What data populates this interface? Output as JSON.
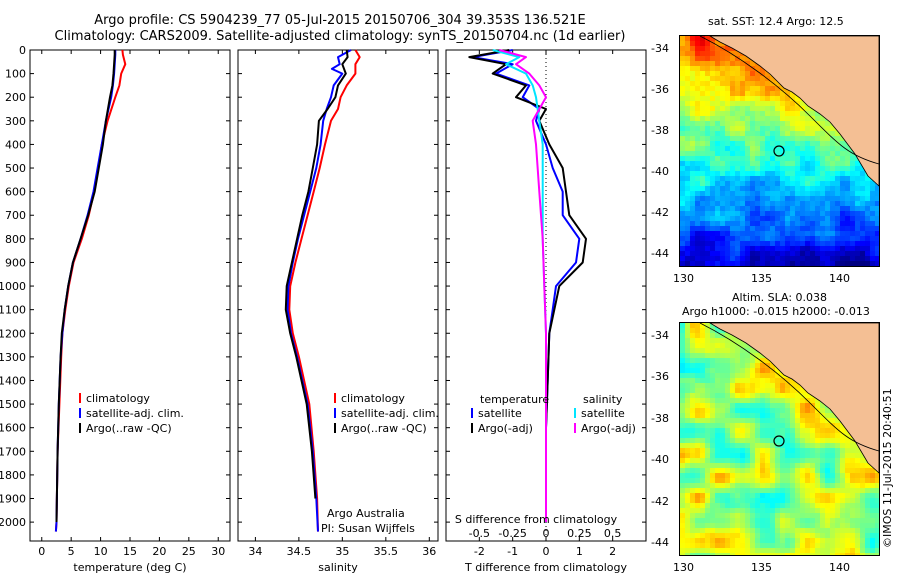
{
  "title": {
    "line1": "Argo profile: CS 5904239_77 05-Jul-2015 20150706_304 39.353S 136.521E",
    "line2": "Climatology: CARS2009. Satellite-adjusted climatology: synTS_20150704.nc (1d earlier)"
  },
  "colors": {
    "climatology": "#ff0000",
    "satellite": "#0000ff",
    "argo": "#000000",
    "satellite_s": "#00e5ff",
    "argo_s": "#ff00ff",
    "land": "#f4bf94"
  },
  "chart_data": [
    {
      "type": "line",
      "name": "temperature",
      "xlabel": "temperature (deg C)",
      "ylabel": "",
      "xlim": [
        -2,
        32
      ],
      "ylim": [
        2080,
        0
      ],
      "xticks": [
        0,
        5,
        10,
        15,
        20,
        25,
        30
      ],
      "yticks": [
        0,
        100,
        200,
        300,
        400,
        500,
        600,
        700,
        800,
        900,
        1000,
        1100,
        1200,
        1300,
        1400,
        1500,
        1600,
        1700,
        1800,
        1900,
        2000
      ],
      "legend": {
        "placement": "lower-middle",
        "entries": [
          "climatology",
          "satellite-adj. clim.",
          "Argo(..raw -QC)"
        ]
      },
      "series": [
        {
          "name": "climatology",
          "color": "#ff0000",
          "depth": [
            0,
            20,
            60,
            100,
            150,
            200,
            300,
            400,
            500,
            600,
            700,
            800,
            900,
            1000,
            1100,
            1200,
            1300,
            1500,
            1700,
            2000,
            2040
          ],
          "values": [
            13.7,
            13.8,
            14.2,
            13.5,
            13.2,
            12.5,
            11.2,
            10.2,
            9.6,
            8.9,
            8.0,
            6.8,
            5.4,
            4.6,
            4.0,
            3.5,
            3.3,
            3.0,
            2.7,
            2.5,
            2.4
          ]
        },
        {
          "name": "satellite-adj. clim.",
          "color": "#0000ff",
          "depth": [
            0,
            20,
            60,
            100,
            150,
            200,
            300,
            400,
            500,
            600,
            700,
            800,
            900,
            1000,
            1100,
            1200,
            1300,
            1500,
            1700,
            2000,
            2040
          ],
          "values": [
            12.5,
            12.5,
            12.4,
            12.3,
            12.1,
            11.8,
            10.9,
            10.2,
            9.5,
            8.8,
            7.8,
            6.6,
            5.3,
            4.5,
            3.9,
            3.5,
            3.2,
            2.9,
            2.7,
            2.5,
            2.4
          ]
        },
        {
          "name": "Argo(..raw -QC)",
          "color": "#000000",
          "depth": [
            0,
            20,
            60,
            100,
            150,
            200,
            300,
            400,
            500,
            600,
            700,
            800,
            900,
            1000,
            1100,
            1200,
            1300,
            1500,
            1700,
            2000
          ],
          "values": [
            12.4,
            12.4,
            12.3,
            12.2,
            12.0,
            11.6,
            10.9,
            10.4,
            9.7,
            9.0,
            7.9,
            6.6,
            5.3,
            4.5,
            3.9,
            3.4,
            3.2,
            2.9,
            2.7,
            2.5
          ]
        }
      ]
    },
    {
      "type": "line",
      "name": "salinity",
      "xlabel": "salinity",
      "ylabel": "",
      "xlim": [
        33.8,
        36.1
      ],
      "ylim": [
        2080,
        0
      ],
      "xticks": [
        34,
        34.5,
        35,
        35.5,
        36
      ],
      "annotation": [
        "Argo Australia",
        "PI: Susan Wijffels"
      ],
      "legend": {
        "placement": "lower-middle",
        "entries": [
          "climatology",
          "satellite-adj. clim.",
          "Argo(..raw -QC)"
        ]
      },
      "series": [
        {
          "name": "climatology",
          "color": "#ff0000",
          "depth": [
            0,
            30,
            60,
            100,
            150,
            200,
            250,
            300,
            400,
            500,
            600,
            700,
            800,
            900,
            1000,
            1100,
            1200,
            1300,
            1500,
            1700,
            1900,
            2040
          ],
          "values": [
            35.15,
            35.2,
            35.15,
            35.15,
            35.05,
            34.98,
            34.95,
            34.87,
            34.8,
            34.74,
            34.67,
            34.6,
            34.53,
            34.46,
            34.4,
            34.39,
            34.43,
            34.5,
            34.62,
            34.67,
            34.71,
            34.72
          ]
        },
        {
          "name": "satellite-adj. clim.",
          "color": "#0000ff",
          "depth": [
            0,
            30,
            60,
            80,
            100,
            150,
            200,
            250,
            300,
            400,
            500,
            600,
            700,
            800,
            900,
            1000,
            1100,
            1200,
            1300,
            1500,
            1700,
            1900,
            2040
          ],
          "values": [
            35.1,
            34.95,
            34.97,
            34.88,
            35.0,
            34.9,
            34.87,
            34.82,
            34.78,
            34.75,
            34.7,
            34.63,
            34.56,
            34.49,
            34.43,
            34.38,
            34.37,
            34.41,
            34.48,
            34.6,
            34.66,
            34.7,
            34.72
          ]
        },
        {
          "name": "Argo(..raw -QC)",
          "color": "#000000",
          "depth": [
            0,
            30,
            60,
            100,
            150,
            200,
            250,
            300,
            400,
            500,
            600,
            700,
            800,
            900,
            1000,
            1100,
            1200,
            1300,
            1500,
            1700,
            1900
          ],
          "values": [
            35.05,
            35.06,
            35.0,
            35.04,
            34.95,
            34.92,
            34.83,
            34.73,
            34.71,
            34.66,
            34.61,
            34.54,
            34.48,
            34.42,
            34.36,
            34.35,
            34.4,
            34.47,
            34.59,
            34.65,
            34.69
          ]
        }
      ]
    },
    {
      "type": "line",
      "name": "difference from climatology",
      "xlabel": "T difference from climatology",
      "top_xlabel": "S difference from climatology",
      "xlim": [
        -3,
        3
      ],
      "ylim": [
        2080,
        0
      ],
      "xticks": [
        -2,
        -1,
        0,
        1,
        2
      ],
      "xtick_labels": [
        "-2",
        "-1",
        "0",
        "1",
        "2"
      ],
      "top_xticks": [
        -0.5,
        -0.25,
        0,
        0.25,
        0.5
      ],
      "top_xtick_labels": [
        "-0.5",
        "-0.25",
        "0",
        "0.25",
        "0.5"
      ],
      "legend": {
        "placement": "middle",
        "groups": [
          {
            "header": "temperature",
            "entries": [
              "satellite",
              "Argo(-adj)"
            ]
          },
          {
            "header": "salinity",
            "entries": [
              "satellite",
              "Argo(-adj)"
            ]
          }
        ]
      },
      "series": [
        {
          "name": "temperature satellite",
          "color": "#0000ff",
          "depth": [
            0,
            30,
            60,
            100,
            150,
            200,
            250,
            300,
            400,
            500,
            600,
            700,
            800,
            900,
            1000,
            1100,
            1200,
            1400,
            1600,
            1800,
            2000
          ],
          "values": [
            -1.0,
            -2.2,
            -1.0,
            -1.5,
            -0.5,
            -0.7,
            -0.2,
            -0.3,
            0.0,
            0.2,
            0.5,
            0.5,
            1.0,
            0.9,
            0.3,
            0.2,
            0.1,
            0.05,
            0.0,
            0.0,
            0.0
          ]
        },
        {
          "name": "temperature Argo(-adj)",
          "color": "#000000",
          "depth": [
            0,
            30,
            60,
            100,
            150,
            200,
            250,
            300,
            400,
            500,
            600,
            700,
            800,
            900,
            1000,
            1100,
            1200,
            1400,
            1600,
            1800,
            2000
          ],
          "values": [
            -1.1,
            -2.3,
            -1.2,
            -1.6,
            -0.6,
            -0.9,
            0.0,
            -0.2,
            0.1,
            0.5,
            0.6,
            0.7,
            1.2,
            1.1,
            0.4,
            0.25,
            0.1,
            0.05,
            0.0,
            0.0,
            0.0
          ]
        },
        {
          "name": "salinity satellite",
          "color": "#00e5ff",
          "depth": [
            0,
            30,
            60,
            100,
            150,
            200,
            300,
            400,
            600,
            800,
            1000,
            1200,
            1500,
            2000
          ],
          "values": [
            -1.6,
            -0.8,
            -1.2,
            -0.6,
            -0.4,
            -0.3,
            -0.2,
            -0.1,
            -0.1,
            -0.1,
            -0.05,
            0.0,
            0.0,
            0.0
          ]
        },
        {
          "name": "salinity Argo(-adj)",
          "color": "#ff00ff",
          "depth": [
            0,
            30,
            60,
            100,
            150,
            200,
            300,
            400,
            600,
            800,
            1000,
            1200,
            1500,
            2000
          ],
          "values": [
            -1.4,
            -0.6,
            -0.9,
            -0.5,
            -0.2,
            0.0,
            -0.4,
            -0.3,
            -0.2,
            -0.1,
            -0.05,
            0.0,
            0.0,
            0.0
          ]
        }
      ]
    }
  ],
  "maps": {
    "sst": {
      "title": "sat. SST: 12.4  Argo: 12.5",
      "yticks": [
        "-34",
        "-36",
        "-38",
        "-40",
        "-42",
        "-44"
      ],
      "xticks": [
        "130",
        "135",
        "140"
      ]
    },
    "sla": {
      "title_line1": "Altim. SLA: 0.038",
      "title_line2": "Argo h1000: -0.015 h2000: -0.013",
      "yticks": [
        "-34",
        "-36",
        "-38",
        "-40",
        "-42",
        "-44"
      ],
      "xticks": [
        "130",
        "135",
        "140"
      ]
    }
  },
  "watermark": "©IMOS 11-Jul-2015 20:40:51"
}
